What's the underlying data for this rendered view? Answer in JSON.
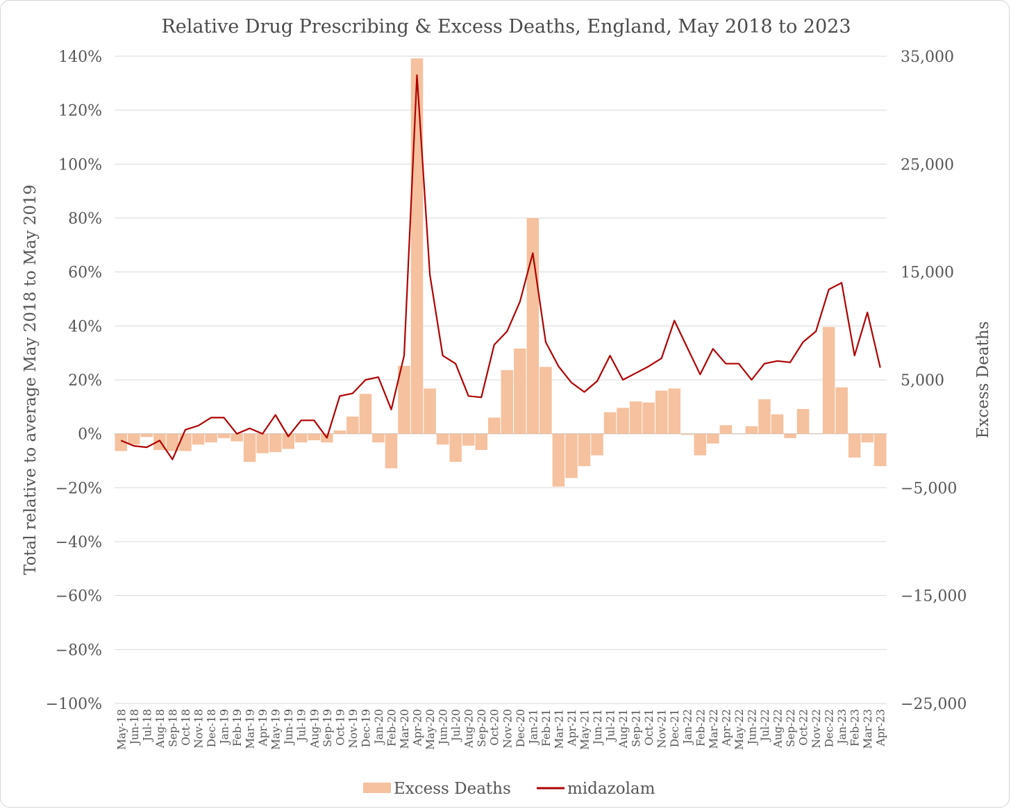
{
  "chart_data": {
    "type": "bar+line",
    "title": "Relative Drug Prescribing & Excess Deaths, England, May 2018 to 2023",
    "ylabel_left": "Total relative to average May 2018 to May 2019",
    "ylabel_right": "Excess Deaths",
    "ylim_left": [
      -100,
      140
    ],
    "ylim_right": [
      -25000,
      35000
    ],
    "yticks_left": [
      "140%",
      "120%",
      "100%",
      "80%",
      "60%",
      "40%",
      "20%",
      "0%",
      "−20%",
      "−40%",
      "−60%",
      "−80%",
      "−100%"
    ],
    "yticks_right": [
      "35,000",
      "25,000",
      "15,000",
      "5,000",
      "−5,000",
      "−15,000",
      "−25,000"
    ],
    "grid": true,
    "legend_position": "bottom",
    "categories": [
      "May-18",
      "Jun-18",
      "Jul-18",
      "Aug-18",
      "Sep-18",
      "Oct-18",
      "Nov-18",
      "Dec-18",
      "Jan-19",
      "Feb-19",
      "Mar-19",
      "Apr-19",
      "May-19",
      "Jun-19",
      "Jul-19",
      "Aug-19",
      "Sep-19",
      "Oct-19",
      "Nov-19",
      "Dec-19",
      "Jan-20",
      "Feb-20",
      "Mar-20",
      "Apr-20",
      "May-20",
      "Jun-20",
      "Jul-20",
      "Aug-20",
      "Sep-20",
      "Oct-20",
      "Nov-20",
      "Dec-20",
      "Jan-21",
      "Feb-21",
      "Mar-21",
      "Apr-21",
      "May-21",
      "Jun-21",
      "Jul-21",
      "Aug-21",
      "Sep-21",
      "Oct-21",
      "Nov-21",
      "Dec-21",
      "Jan-22",
      "Feb-22",
      "Mar-22",
      "Apr-22",
      "May-22",
      "Jun-22",
      "Jul-22",
      "Aug-22",
      "Sep-22",
      "Oct-22",
      "Nov-22",
      "Dec-22",
      "Jan-23",
      "Feb-23",
      "Mar-23",
      "Apr-23"
    ],
    "series": [
      {
        "name": "Excess Deaths",
        "type": "bar",
        "axis": "right",
        "color": "#f5c19e",
        "values": [
          -1600,
          -1000,
          -300,
          -1500,
          -1600,
          -1600,
          -1000,
          -800,
          -400,
          -700,
          -2600,
          -1800,
          -1700,
          -1400,
          -800,
          -600,
          -800,
          300,
          1600,
          3700,
          -800,
          -3200,
          6300,
          34800,
          4200,
          -1000,
          -2600,
          -1100,
          -1500,
          1500,
          5900,
          7900,
          20000,
          6200,
          -4900,
          -4100,
          -3000,
          -2000,
          2000,
          2400,
          3000,
          2900,
          4000,
          4200,
          -100,
          -2000,
          -900,
          800,
          0,
          700,
          3200,
          1800,
          -400,
          2300,
          0,
          9900,
          4300,
          -2200,
          -800,
          -3000
        ]
      },
      {
        "name": "midazolam",
        "type": "line",
        "axis": "left",
        "color": "#b00000",
        "values": [
          -2.5,
          -4.5,
          -5,
          -2.5,
          -9.5,
          1.5,
          3,
          6,
          6,
          0,
          2,
          0,
          7,
          -1,
          5,
          5,
          -1.5,
          14,
          15,
          20,
          21,
          9,
          29,
          133,
          59,
          29,
          26,
          14,
          13.5,
          33,
          38,
          49,
          67,
          34,
          25,
          19,
          15.5,
          19.5,
          29,
          20,
          22.5,
          25,
          28,
          42,
          32,
          22,
          31.5,
          26,
          26,
          20,
          26,
          27,
          26.5,
          34,
          38,
          53.5,
          56,
          29,
          45,
          24.5
        ]
      }
    ]
  }
}
